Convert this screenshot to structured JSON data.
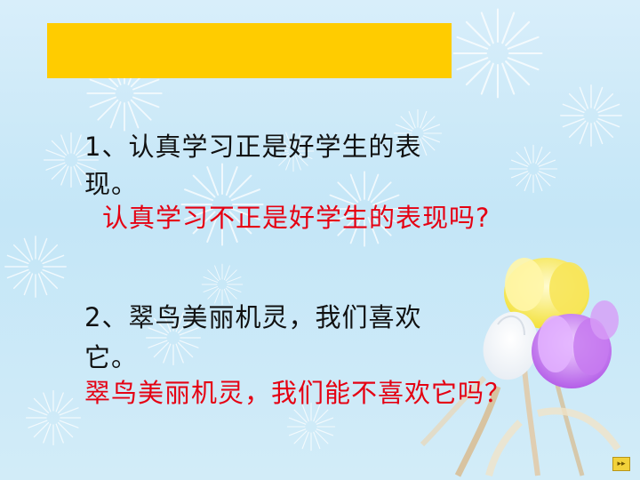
{
  "slide": {
    "questions": [
      {
        "statement_line1": "1、认真学习正是好学生的表",
        "statement_line2": "现。",
        "rhetorical": "认真学习不正是好学生的表现吗?"
      },
      {
        "statement_line1": "2、翠鸟美丽机灵，我们喜欢",
        "statement_line2": "它。",
        "rhetorical": "翠鸟美丽机灵，我们能不喜欢它吗？"
      }
    ],
    "nav_icon": "next-slide-icon"
  },
  "colors": {
    "title_bar": "#ffcc00",
    "statement_text": "#111111",
    "rhetorical_text": "#e50012"
  }
}
